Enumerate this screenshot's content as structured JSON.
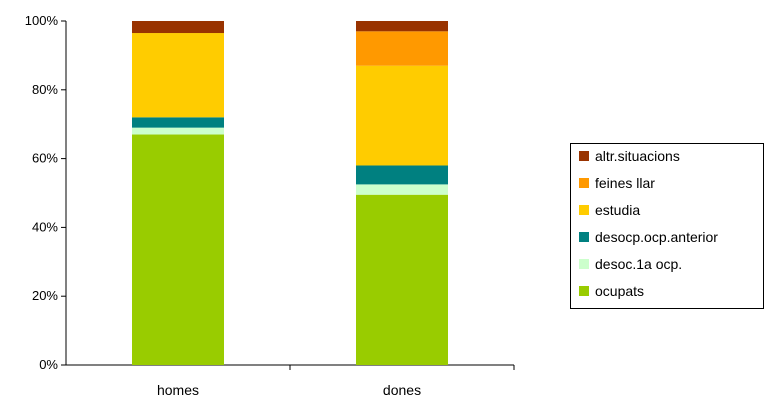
{
  "chart_data": {
    "type": "bar",
    "stacked": true,
    "percent": true,
    "categories": [
      "homes",
      "dones"
    ],
    "series": [
      {
        "name": "ocupats",
        "color": "#99cc00",
        "values": [
          67,
          49.5
        ]
      },
      {
        "name": "desoc.1a ocp.",
        "color": "#ccffcc",
        "values": [
          2,
          3
        ]
      },
      {
        "name": "desocp.ocp.anterior",
        "color": "#008080",
        "values": [
          3,
          5.5
        ]
      },
      {
        "name": "estudia",
        "color": "#ffcc00",
        "values": [
          24.5,
          29
        ]
      },
      {
        "name": "feines llar",
        "color": "#ff9900",
        "values": [
          0,
          10
        ]
      },
      {
        "name": "altr.situacions",
        "color": "#993300",
        "values": [
          3.5,
          3
        ]
      }
    ],
    "yticks": [
      "0%",
      "20%",
      "40%",
      "60%",
      "80%",
      "100%"
    ],
    "ylim": [
      0,
      100
    ],
    "title": "",
    "xlabel": "",
    "ylabel": "",
    "grid": false,
    "legend": "right"
  }
}
